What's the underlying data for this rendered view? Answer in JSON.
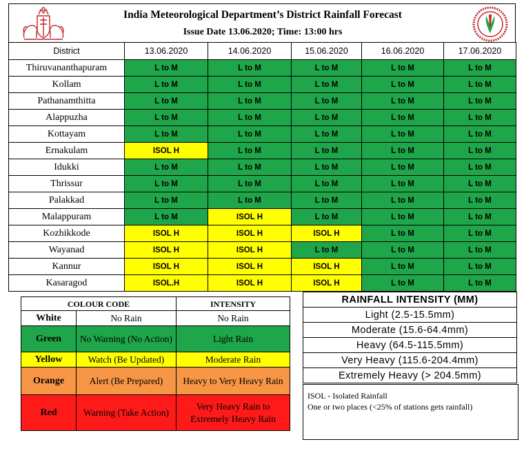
{
  "header": {
    "title": "India Meteorological Department’s District Rainfall Forecast",
    "issue_line": "Issue Date  13.06.2020; Time: 13:00 hrs"
  },
  "forecast": {
    "district_header": "District",
    "dates": [
      "13.06.2020",
      "14.06.2020",
      "15.06.2020",
      "16.06.2020",
      "17.06.2020"
    ],
    "rows": [
      {
        "district": "Thiruvananthapuram",
        "cells": [
          {
            "t": "L to M",
            "c": "green"
          },
          {
            "t": "L to M",
            "c": "green"
          },
          {
            "t": "L to M",
            "c": "green"
          },
          {
            "t": "L to M",
            "c": "green"
          },
          {
            "t": "L to M",
            "c": "green"
          }
        ]
      },
      {
        "district": "Kollam",
        "cells": [
          {
            "t": "L to M",
            "c": "green"
          },
          {
            "t": "L to M",
            "c": "green"
          },
          {
            "t": "L to M",
            "c": "green"
          },
          {
            "t": "L to M",
            "c": "green"
          },
          {
            "t": "L to M",
            "c": "green"
          }
        ]
      },
      {
        "district": "Pathanamthitta",
        "cells": [
          {
            "t": "L to M",
            "c": "green"
          },
          {
            "t": "L to M",
            "c": "green"
          },
          {
            "t": "L to M",
            "c": "green"
          },
          {
            "t": "L to M",
            "c": "green"
          },
          {
            "t": "L to M",
            "c": "green"
          }
        ]
      },
      {
        "district": "Alappuzha",
        "cells": [
          {
            "t": "L to M",
            "c": "green"
          },
          {
            "t": "L to M",
            "c": "green"
          },
          {
            "t": "L to M",
            "c": "green"
          },
          {
            "t": "L to M",
            "c": "green"
          },
          {
            "t": "L to M",
            "c": "green"
          }
        ]
      },
      {
        "district": "Kottayam",
        "cells": [
          {
            "t": "L to M",
            "c": "green"
          },
          {
            "t": "L to M",
            "c": "green"
          },
          {
            "t": "L to M",
            "c": "green"
          },
          {
            "t": "L to M",
            "c": "green"
          },
          {
            "t": "L to M",
            "c": "green"
          }
        ]
      },
      {
        "district": "Ernakulam",
        "cells": [
          {
            "t": "ISOL H",
            "c": "yellow"
          },
          {
            "t": "L to M",
            "c": "green"
          },
          {
            "t": "L to M",
            "c": "green"
          },
          {
            "t": "L to M",
            "c": "green"
          },
          {
            "t": "L to M",
            "c": "green"
          }
        ]
      },
      {
        "district": "Idukki",
        "cells": [
          {
            "t": "L to M",
            "c": "green"
          },
          {
            "t": "L to M",
            "c": "green"
          },
          {
            "t": "L to M",
            "c": "green"
          },
          {
            "t": "L to M",
            "c": "green"
          },
          {
            "t": "L to M",
            "c": "green"
          }
        ]
      },
      {
        "district": "Thrissur",
        "cells": [
          {
            "t": "L to M",
            "c": "green"
          },
          {
            "t": "L to M",
            "c": "green"
          },
          {
            "t": "L to M",
            "c": "green"
          },
          {
            "t": "L to M",
            "c": "green"
          },
          {
            "t": "L to M",
            "c": "green"
          }
        ]
      },
      {
        "district": "Palakkad",
        "cells": [
          {
            "t": "L to M",
            "c": "green"
          },
          {
            "t": "L to M",
            "c": "green"
          },
          {
            "t": "L to M",
            "c": "green"
          },
          {
            "t": "L to M",
            "c": "green"
          },
          {
            "t": "L to M",
            "c": "green"
          }
        ]
      },
      {
        "district": "Malappuram",
        "cells": [
          {
            "t": "L to M",
            "c": "green"
          },
          {
            "t": "ISOL H",
            "c": "yellow"
          },
          {
            "t": "L to M",
            "c": "green"
          },
          {
            "t": "L to M",
            "c": "green"
          },
          {
            "t": "L to M",
            "c": "green"
          }
        ]
      },
      {
        "district": "Kozhikkode",
        "cells": [
          {
            "t": "ISOL H",
            "c": "yellow"
          },
          {
            "t": "ISOL H",
            "c": "yellow"
          },
          {
            "t": "ISOL H",
            "c": "yellow"
          },
          {
            "t": "L to M",
            "c": "green"
          },
          {
            "t": "L to M",
            "c": "green"
          }
        ]
      },
      {
        "district": "Wayanad",
        "cells": [
          {
            "t": "ISOL H",
            "c": "yellow"
          },
          {
            "t": "ISOL H",
            "c": "yellow"
          },
          {
            "t": "L to M",
            "c": "green"
          },
          {
            "t": "L to M",
            "c": "green"
          },
          {
            "t": "L to M",
            "c": "green"
          }
        ]
      },
      {
        "district": "Kannur",
        "cells": [
          {
            "t": "ISOL H",
            "c": "yellow"
          },
          {
            "t": "ISOL H",
            "c": "yellow"
          },
          {
            "t": "ISOL H",
            "c": "yellow"
          },
          {
            "t": "L to M",
            "c": "green"
          },
          {
            "t": "L to M",
            "c": "green"
          }
        ]
      },
      {
        "district": "Kasaragod",
        "cells": [
          {
            "t": "ISOL.H",
            "c": "yellow"
          },
          {
            "t": "ISOL H",
            "c": "yellow"
          },
          {
            "t": "ISOL H",
            "c": "yellow"
          },
          {
            "t": "L to M",
            "c": "green"
          },
          {
            "t": "L to M",
            "c": "green"
          }
        ]
      }
    ]
  },
  "colour_code": {
    "header_colour": "COLOUR CODE",
    "header_intensity": "INTENSITY",
    "rows": [
      {
        "name": "White",
        "meaning": "No Rain",
        "intensity": "No Rain",
        "c": "white"
      },
      {
        "name": "Green",
        "meaning": "No Warning  (No Action)",
        "intensity": "Light  Rain",
        "c": "green"
      },
      {
        "name": "Yellow",
        "meaning": "Watch (Be Updated)",
        "intensity": "Moderate Rain",
        "c": "yellow"
      },
      {
        "name": "Orange",
        "meaning": "Alert  (Be Prepared)",
        "intensity": "Heavy to Very Heavy Rain",
        "c": "orange"
      },
      {
        "name": "Red",
        "meaning": "Warning  (Take Action)",
        "intensity": "Very Heavy Rain to Extremely  Heavy  Rain",
        "c": "red"
      }
    ]
  },
  "rainfall_intensity": {
    "title": "RAINFALL INTENSITY (MM)",
    "rows": [
      "Light (2.5-15.5mm)",
      "Moderate (15.6-64.4mm)",
      "Heavy (64.5-115.5mm)",
      "Very Heavy (115.6-204.4mm)",
      "Extremely Heavy (> 204.5mm)"
    ]
  },
  "note": {
    "line1": "ISOL  - Isolated Rainfall",
    "line2": "One or two places (<25%  of stations gets rainfall)"
  },
  "colors": {
    "green": "#1fa64a",
    "yellow": "#ffff00",
    "orange": "#f79646",
    "red": "#ff1a1a",
    "white": "#ffffff",
    "logo_red": "#c0262b"
  },
  "icons": {
    "left_logo": "kerala-emblem-icon",
    "right_logo": "imd-logo-icon"
  }
}
